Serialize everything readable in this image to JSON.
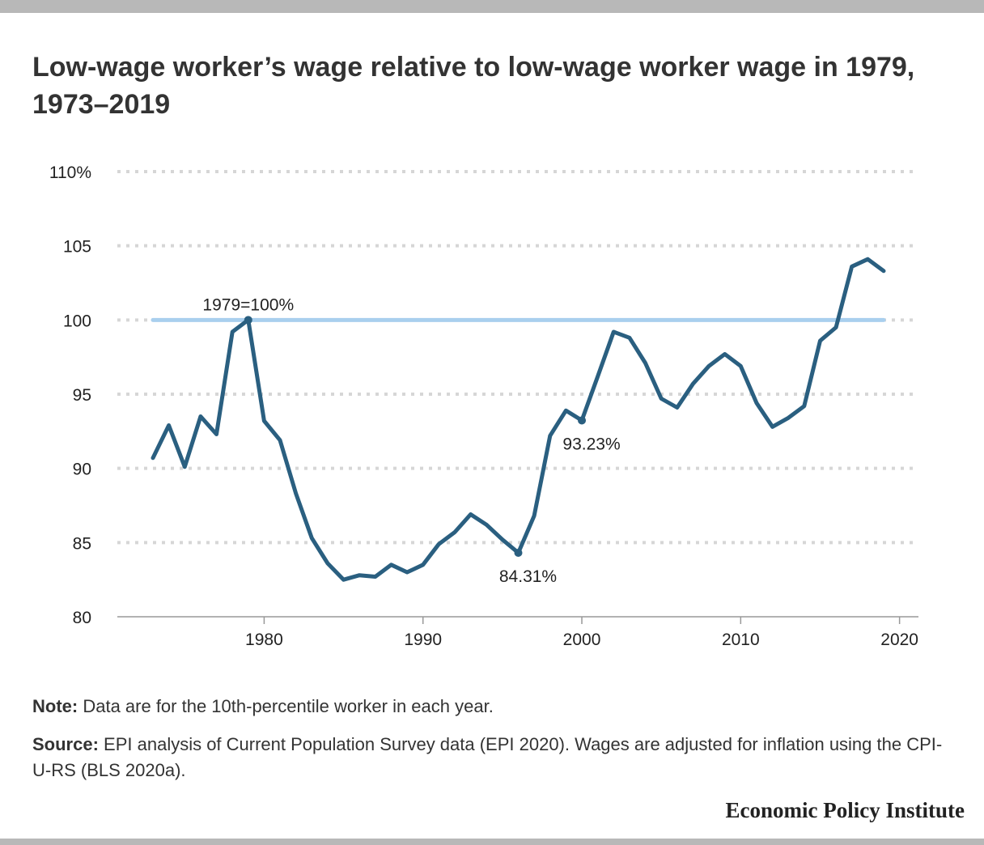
{
  "chart_data": {
    "type": "line",
    "title": "Low-wage worker’s wage relative to low-wage worker wage in 1979, 1973–2019",
    "xlabel": "",
    "ylabel": "",
    "x": [
      1973,
      1974,
      1975,
      1976,
      1977,
      1978,
      1979,
      1980,
      1981,
      1982,
      1983,
      1984,
      1985,
      1986,
      1987,
      1988,
      1989,
      1990,
      1991,
      1992,
      1993,
      1994,
      1995,
      1996,
      1997,
      1998,
      1999,
      2000,
      2001,
      2002,
      2003,
      2004,
      2005,
      2006,
      2007,
      2008,
      2009,
      2010,
      2011,
      2012,
      2013,
      2014,
      2015,
      2016,
      2017,
      2018,
      2019
    ],
    "series": [
      {
        "values": [
          90.7,
          92.9,
          90.1,
          93.5,
          92.3,
          99.2,
          100.0,
          93.2,
          91.9,
          88.3,
          85.3,
          83.6,
          82.5,
          82.8,
          82.7,
          83.5,
          83.0,
          83.5,
          84.9,
          85.7,
          86.9,
          86.2,
          85.2,
          84.31,
          86.8,
          92.2,
          93.9,
          93.23,
          96.2,
          99.2,
          98.8,
          97.1,
          94.7,
          94.1,
          95.7,
          96.9,
          97.7,
          96.9,
          94.4,
          92.8,
          93.4,
          94.2,
          98.6,
          99.5,
          103.6,
          104.1,
          103.3
        ],
        "color": "#2a5f80"
      }
    ],
    "reference_line": {
      "value": 100,
      "label": "1979=100%",
      "color": "#a9cfee"
    },
    "annotations": [
      {
        "x": 1996,
        "y": 84.31,
        "label": "84.31%"
      },
      {
        "x": 2000,
        "y": 93.23,
        "label": "93.23%"
      }
    ],
    "xlim": [
      1970,
      2021
    ],
    "ylim": [
      80,
      110
    ],
    "xticks": [
      1980,
      1990,
      2000,
      2010,
      2020
    ],
    "xtick_labels": [
      "1980",
      "1990",
      "2000",
      "2010",
      "2020"
    ],
    "yticks": [
      80,
      85,
      90,
      95,
      100,
      105,
      110
    ],
    "ytick_labels": [
      "80",
      "85",
      "90",
      "95",
      "100",
      "105",
      "110%"
    ],
    "grid": "horizontal-dotted",
    "legend": "none"
  },
  "note": {
    "label": "Note:",
    "text": " Data are for the 10th-percentile worker in each year."
  },
  "source": {
    "label": "Source:",
    "text": " EPI analysis of Current Population Survey data (EPI 2020). Wages are adjusted for inflation using the CPI-U-RS (BLS 2020a)."
  },
  "brand": "Economic Policy Institute"
}
